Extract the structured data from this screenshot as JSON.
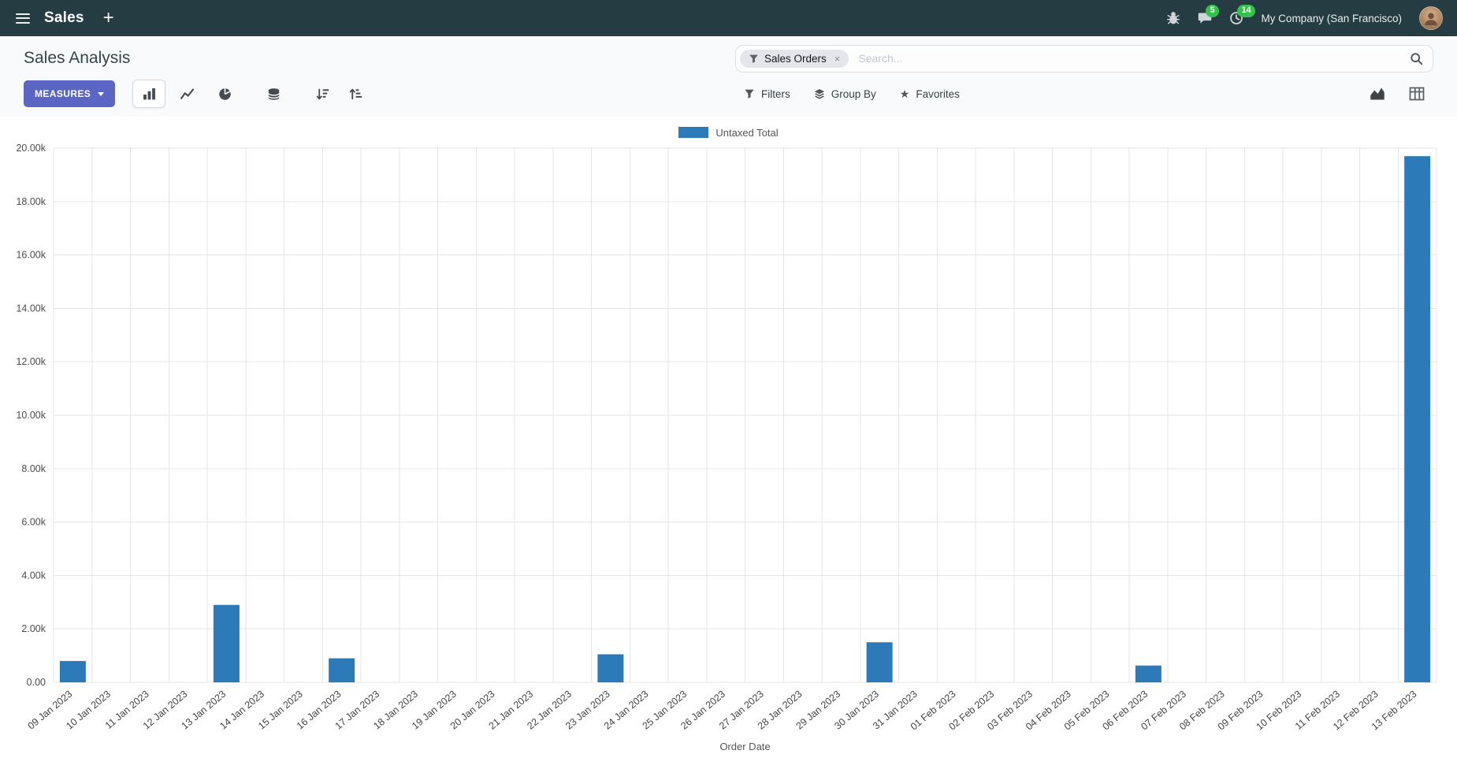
{
  "navbar": {
    "app_menu_label": "Sales",
    "messages_badge": "5",
    "activities_badge": "14",
    "company": "My Company (San Francisco)"
  },
  "control_panel": {
    "title": "Sales Analysis",
    "measures_label": "MEASURES",
    "filters_label": "Filters",
    "group_by_label": "Group By",
    "favorites_label": "Favorites",
    "search": {
      "facet": "Sales Orders",
      "remove_facet": "×",
      "placeholder": "Search..."
    }
  },
  "chart_data": {
    "type": "bar",
    "title": "",
    "legend": "Untaxed Total",
    "xlabel": "Order Date",
    "ylabel": "",
    "ylim": [
      0,
      20000
    ],
    "grid": true,
    "legend_position": "top-center",
    "y_ticks": [
      {
        "value": 0,
        "label": "0.00"
      },
      {
        "value": 2000,
        "label": "2.00k"
      },
      {
        "value": 4000,
        "label": "4.00k"
      },
      {
        "value": 6000,
        "label": "6.00k"
      },
      {
        "value": 8000,
        "label": "8.00k"
      },
      {
        "value": 10000,
        "label": "10.00k"
      },
      {
        "value": 12000,
        "label": "12.00k"
      },
      {
        "value": 14000,
        "label": "14.00k"
      },
      {
        "value": 16000,
        "label": "16.00k"
      },
      {
        "value": 18000,
        "label": "18.00k"
      },
      {
        "value": 20000,
        "label": "20.00k"
      }
    ],
    "categories": [
      "09 Jan 2023",
      "10 Jan 2023",
      "11 Jan 2023",
      "12 Jan 2023",
      "13 Jan 2023",
      "14 Jan 2023",
      "15 Jan 2023",
      "16 Jan 2023",
      "17 Jan 2023",
      "18 Jan 2023",
      "19 Jan 2023",
      "20 Jan 2023",
      "21 Jan 2023",
      "22 Jan 2023",
      "23 Jan 2023",
      "24 Jan 2023",
      "25 Jan 2023",
      "26 Jan 2023",
      "27 Jan 2023",
      "28 Jan 2023",
      "29 Jan 2023",
      "30 Jan 2023",
      "31 Jan 2023",
      "01 Feb 2023",
      "02 Feb 2023",
      "03 Feb 2023",
      "04 Feb 2023",
      "05 Feb 2023",
      "06 Feb 2023",
      "07 Feb 2023",
      "08 Feb 2023",
      "09 Feb 2023",
      "10 Feb 2023",
      "11 Feb 2023",
      "12 Feb 2023",
      "13 Feb 2023"
    ],
    "values": [
      800,
      0,
      0,
      0,
      2900,
      0,
      0,
      900,
      0,
      0,
      0,
      0,
      0,
      0,
      1050,
      0,
      0,
      0,
      0,
      0,
      0,
      1500,
      0,
      0,
      0,
      0,
      0,
      0,
      630,
      0,
      0,
      0,
      0,
      0,
      0,
      19700
    ]
  },
  "colors": {
    "bar": "#2d7ab9",
    "accent": "#5b66c4",
    "badge": "#32c34a",
    "navbar_bg": "#253c42",
    "gridline": "#e5e5e5"
  }
}
